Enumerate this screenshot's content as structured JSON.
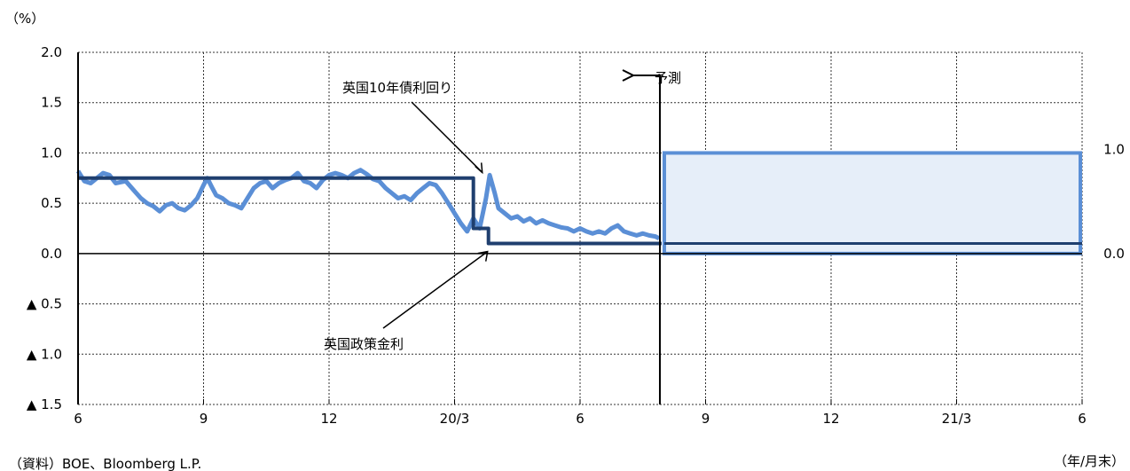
{
  "chart_data": {
    "type": "line",
    "unit_label": "（%）",
    "xlabel": "（年/月末）",
    "source": "（資料）BOE、Bloomberg L.P.",
    "ylim": [
      -1.5,
      2.0
    ],
    "y_ticks": [
      {
        "v": 2.0,
        "label": "2.0"
      },
      {
        "v": 1.5,
        "label": "1.5"
      },
      {
        "v": 1.0,
        "label": "1.0"
      },
      {
        "v": 0.5,
        "label": "0.5"
      },
      {
        "v": 0.0,
        "label": "0.0"
      },
      {
        "v": -0.5,
        "label": "▲ 0.5"
      },
      {
        "v": -1.0,
        "label": "▲ 1.0"
      },
      {
        "v": -1.5,
        "label": "▲ 1.5"
      }
    ],
    "x_ticks": [
      "6",
      "9",
      "12",
      "20/3",
      "6",
      "9",
      "12",
      "21/3",
      "6"
    ],
    "grid": true,
    "series": [
      {
        "name": "英国10年債利回り",
        "color": "#5b8fd6",
        "points": [
          [
            0.0,
            0.82
          ],
          [
            0.05,
            0.72
          ],
          [
            0.1,
            0.7
          ],
          [
            0.15,
            0.75
          ],
          [
            0.2,
            0.8
          ],
          [
            0.25,
            0.78
          ],
          [
            0.3,
            0.7
          ],
          [
            0.38,
            0.72
          ],
          [
            0.45,
            0.62
          ],
          [
            0.5,
            0.55
          ],
          [
            0.55,
            0.5
          ],
          [
            0.6,
            0.47
          ],
          [
            0.65,
            0.42
          ],
          [
            0.7,
            0.48
          ],
          [
            0.75,
            0.5
          ],
          [
            0.8,
            0.45
          ],
          [
            0.85,
            0.43
          ],
          [
            0.9,
            0.48
          ],
          [
            0.95,
            0.55
          ],
          [
            1.0,
            0.68
          ],
          [
            1.03,
            0.75
          ],
          [
            1.07,
            0.65
          ],
          [
            1.1,
            0.58
          ],
          [
            1.15,
            0.55
          ],
          [
            1.2,
            0.5
          ],
          [
            1.25,
            0.48
          ],
          [
            1.3,
            0.45
          ],
          [
            1.35,
            0.55
          ],
          [
            1.4,
            0.65
          ],
          [
            1.45,
            0.7
          ],
          [
            1.5,
            0.72
          ],
          [
            1.55,
            0.65
          ],
          [
            1.6,
            0.7
          ],
          [
            1.65,
            0.73
          ],
          [
            1.7,
            0.75
          ],
          [
            1.75,
            0.8
          ],
          [
            1.8,
            0.72
          ],
          [
            1.85,
            0.7
          ],
          [
            1.9,
            0.65
          ],
          [
            1.95,
            0.73
          ],
          [
            2.0,
            0.78
          ],
          [
            2.05,
            0.8
          ],
          [
            2.1,
            0.78
          ],
          [
            2.15,
            0.75
          ],
          [
            2.2,
            0.8
          ],
          [
            2.25,
            0.83
          ],
          [
            2.3,
            0.79
          ],
          [
            2.35,
            0.74
          ],
          [
            2.4,
            0.72
          ],
          [
            2.45,
            0.65
          ],
          [
            2.5,
            0.6
          ],
          [
            2.55,
            0.55
          ],
          [
            2.6,
            0.57
          ],
          [
            2.65,
            0.53
          ],
          [
            2.7,
            0.6
          ],
          [
            2.75,
            0.65
          ],
          [
            2.8,
            0.7
          ],
          [
            2.85,
            0.68
          ],
          [
            2.9,
            0.6
          ],
          [
            2.95,
            0.5
          ],
          [
            3.0,
            0.4
          ],
          [
            3.05,
            0.3
          ],
          [
            3.1,
            0.22
          ],
          [
            3.15,
            0.35
          ],
          [
            3.2,
            0.25
          ],
          [
            3.25,
            0.55
          ],
          [
            3.28,
            0.78
          ],
          [
            3.32,
            0.6
          ],
          [
            3.35,
            0.45
          ],
          [
            3.4,
            0.4
          ],
          [
            3.45,
            0.35
          ],
          [
            3.5,
            0.37
          ],
          [
            3.55,
            0.32
          ],
          [
            3.6,
            0.35
          ],
          [
            3.65,
            0.3
          ],
          [
            3.7,
            0.33
          ],
          [
            3.75,
            0.3
          ],
          [
            3.8,
            0.28
          ],
          [
            3.85,
            0.26
          ],
          [
            3.9,
            0.25
          ],
          [
            3.95,
            0.22
          ],
          [
            4.0,
            0.25
          ],
          [
            4.05,
            0.22
          ],
          [
            4.1,
            0.2
          ],
          [
            4.15,
            0.22
          ],
          [
            4.2,
            0.2
          ],
          [
            4.25,
            0.25
          ],
          [
            4.3,
            0.28
          ],
          [
            4.35,
            0.22
          ],
          [
            4.4,
            0.2
          ],
          [
            4.45,
            0.18
          ],
          [
            4.5,
            0.2
          ],
          [
            4.55,
            0.18
          ],
          [
            4.6,
            0.17
          ],
          [
            4.63,
            0.15
          ]
        ]
      },
      {
        "name": "英国政策金利",
        "color": "#1f3f6f",
        "points": [
          [
            0.0,
            0.75
          ],
          [
            3.15,
            0.75
          ],
          [
            3.15,
            0.25
          ],
          [
            3.27,
            0.25
          ],
          [
            3.27,
            0.1
          ],
          [
            4.65,
            0.1
          ]
        ]
      }
    ],
    "forecast": {
      "label": "予測",
      "start_x": 4.65,
      "end_x": 8.0,
      "policy_rate_forecast": 0.1,
      "band_low": 0.0,
      "band_high": 1.0,
      "band_low_label": "0.0",
      "band_high_label": "1.0",
      "band_fill": "#e6eef9",
      "band_edge": "#5b8fd6",
      "policy_color": "#1f3f6f"
    },
    "annotations": [
      {
        "text": "英国10年債利回り",
        "target_x": 3.27,
        "target_y": 0.85
      },
      {
        "text": "英国政策金利",
        "target_x": 3.27,
        "target_y": 0.02
      }
    ]
  }
}
